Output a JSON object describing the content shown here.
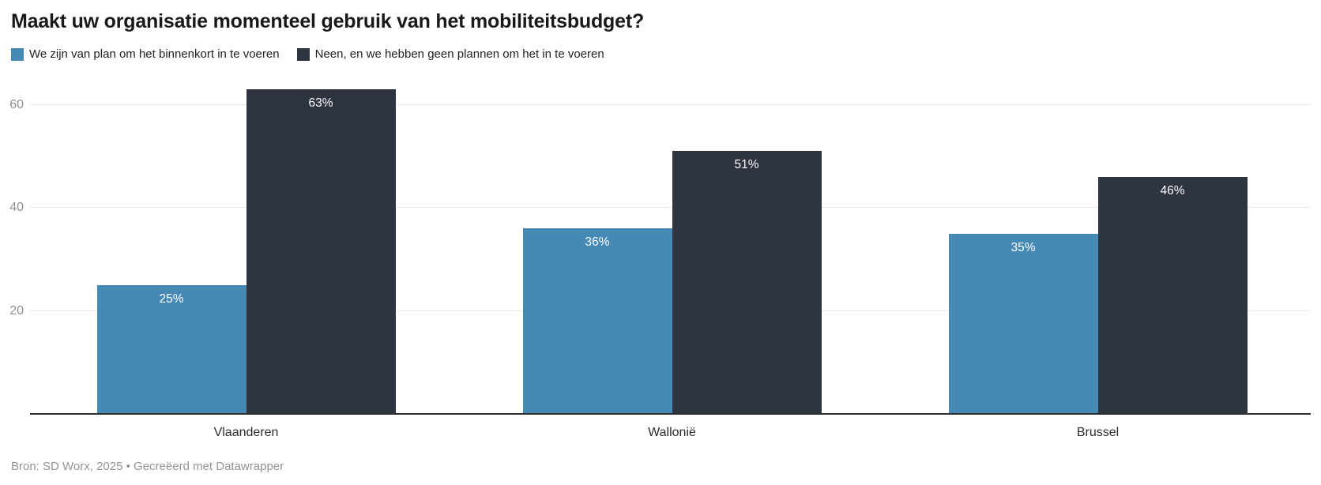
{
  "title": "Maakt uw organisatie momenteel gebruik van het mobiliteitsbudget?",
  "legend": [
    {
      "label": "We zijn van plan om het binnenkort in te voeren",
      "color": "#4589b4"
    },
    {
      "label": "Neen, en we hebben geen plannen om het in te voeren",
      "color": "#2e3440"
    }
  ],
  "footer": "Bron: SD Worx, 2025 • Gecreëerd met Datawrapper",
  "chart_data": {
    "type": "bar",
    "title": "Maakt uw organisatie momenteel gebruik van het mobiliteitsbudget?",
    "categories": [
      "Vlaanderen",
      "Wallonië",
      "Brussel"
    ],
    "series": [
      {
        "name": "We zijn van plan om het binnenkort in te voeren",
        "color": "#4589b4",
        "values": [
          25,
          36,
          35
        ]
      },
      {
        "name": "Neen, en we hebben geen plannen om het in te voeren",
        "color": "#2e3440",
        "values": [
          63,
          51,
          46
        ]
      }
    ],
    "value_suffix": "%",
    "yticks": [
      20,
      40,
      60
    ],
    "ylim": [
      0,
      65
    ],
    "grid": true,
    "legend_position": "top",
    "source": "Bron: SD Worx, 2025 • Gecreëerd met Datawrapper"
  }
}
